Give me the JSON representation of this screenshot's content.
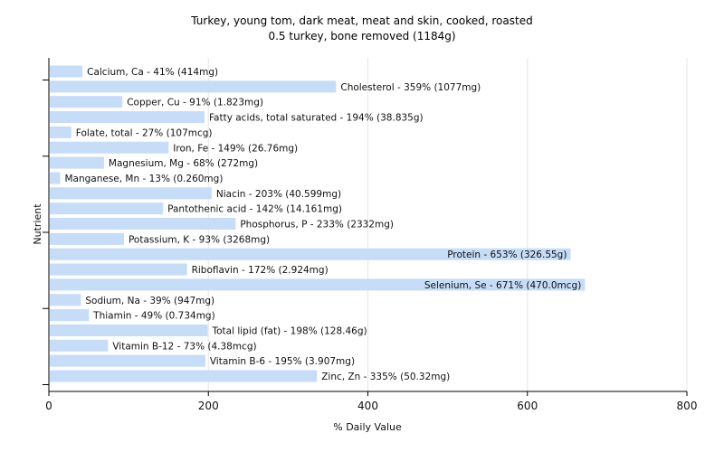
{
  "chart_data": {
    "type": "bar",
    "orientation": "horizontal",
    "title": "Turkey, young tom, dark meat, meat and skin, cooked, roasted",
    "subtitle": "0.5 turkey, bone removed (1184g)",
    "xlabel": "% Daily Value",
    "ylabel": "Nutrient",
    "xlim": [
      0,
      800
    ],
    "xticks": [
      0,
      200,
      400,
      600,
      800
    ],
    "grid": true,
    "bar_color": "#c6dcf7",
    "categories": [
      "Calcium, Ca",
      "Cholesterol",
      "Copper, Cu",
      "Fatty acids, total saturated",
      "Folate, total",
      "Iron, Fe",
      "Magnesium, Mg",
      "Manganese, Mn",
      "Niacin",
      "Pantothenic acid",
      "Phosphorus, P",
      "Potassium, K",
      "Protein",
      "Riboflavin",
      "Selenium, Se",
      "Sodium, Na",
      "Thiamin",
      "Total lipid (fat)",
      "Vitamin B-12",
      "Vitamin B-6",
      "Zinc, Zn"
    ],
    "values": [
      41,
      359,
      91,
      194,
      27,
      149,
      68,
      13,
      203,
      142,
      233,
      93,
      653,
      172,
      671,
      39,
      49,
      198,
      73,
      195,
      335
    ],
    "labels": [
      "Calcium, Ca - 41% (414mg)",
      "Cholesterol - 359% (1077mg)",
      "Copper, Cu - 91% (1.823mg)",
      "Fatty acids, total saturated - 194% (38.835g)",
      "Folate, total - 27% (107mcg)",
      "Iron, Fe - 149% (26.76mg)",
      "Magnesium, Mg - 68% (272mg)",
      "Manganese, Mn - 13% (0.260mg)",
      "Niacin - 203% (40.599mg)",
      "Pantothenic acid - 142% (14.161mg)",
      "Phosphorus, P - 233% (2332mg)",
      "Potassium, K - 93% (3268mg)",
      "Protein - 653% (326.55g)",
      "Riboflavin - 172% (2.924mg)",
      "Selenium, Se - 671% (470.0mcg)",
      "Sodium, Na - 39% (947mg)",
      "Thiamin - 49% (0.734mg)",
      "Total lipid (fat) - 198% (128.46g)",
      "Vitamin B-12 - 73% (4.38mcg)",
      "Vitamin B-6 - 195% (3.907mg)",
      "Zinc, Zn - 335% (50.32mg)"
    ],
    "inside_label_threshold": 600
  }
}
